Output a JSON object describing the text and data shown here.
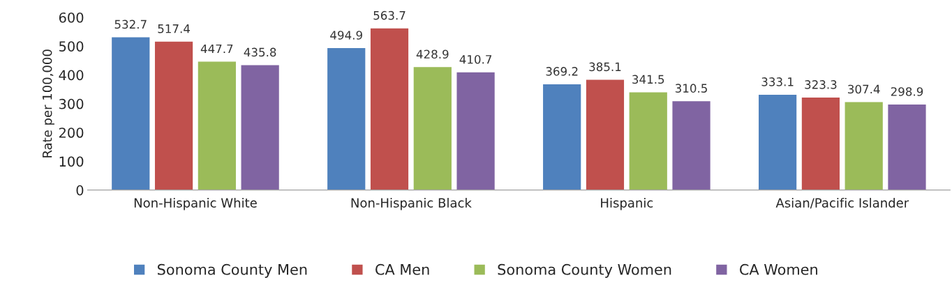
{
  "chart_data": {
    "type": "bar",
    "ylabel": "Rate per 100,000",
    "categories": [
      "Non-Hispanic White",
      "Non-Hispanic Black",
      "Hispanic",
      "Asian/Pacific Islander"
    ],
    "series": [
      {
        "name": "Sonoma County Men",
        "color": "#4f81bd",
        "values": [
          532.7,
          494.9,
          369.2,
          333.1
        ]
      },
      {
        "name": "CA Men",
        "color": "#c0504d",
        "values": [
          517.4,
          563.7,
          385.1,
          323.3
        ]
      },
      {
        "name": "Sonoma County Women",
        "color": "#9bbb59",
        "values": [
          447.7,
          428.9,
          341.5,
          307.4
        ]
      },
      {
        "name": "CA Women",
        "color": "#8064a2",
        "values": [
          435.8,
          410.7,
          310.5,
          298.9
        ]
      }
    ],
    "ylim": [
      0,
      600
    ],
    "yticks": [
      0,
      100,
      200,
      300,
      400,
      500,
      600
    ],
    "data_labels": true,
    "grid": false,
    "legend": "bottom"
  }
}
